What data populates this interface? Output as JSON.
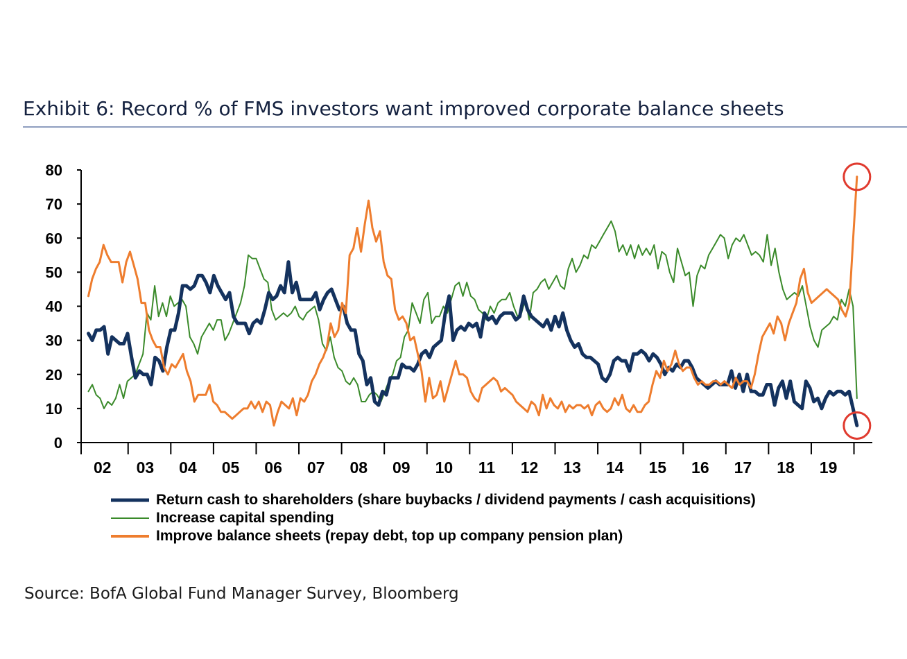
{
  "title": "Exhibit 6: Record % of FMS investors want improved corporate balance sheets",
  "source": "Source: BofA Global Fund Manager Survey, Bloomberg",
  "chart_data": {
    "type": "line",
    "x_start": 2002.17,
    "x_end": 2020.17,
    "step_years": 0.08333,
    "ylim": [
      0,
      80
    ],
    "yticks": [
      0,
      10,
      20,
      30,
      40,
      50,
      60,
      70,
      80
    ],
    "xtick_labels": [
      "02",
      "03",
      "04",
      "05",
      "06",
      "07",
      "08",
      "09",
      "10",
      "11",
      "12",
      "13",
      "14",
      "15",
      "16",
      "17",
      "18",
      "19"
    ],
    "xtick_positions": [
      2002.5,
      2003.5,
      2004.5,
      2005.5,
      2006.5,
      2007.5,
      2008.5,
      2009.5,
      2010.5,
      2011.5,
      2012.5,
      2013.5,
      2014.5,
      2015.5,
      2016.5,
      2017.5,
      2018.5,
      2019.5
    ],
    "xlabel": "",
    "ylabel": "",
    "series": [
      {
        "name": "Return cash to shareholders (share buybacks / dividend payments / cash acquisitions)",
        "color": "#14325e",
        "width": 5,
        "values": [
          32,
          30,
          33,
          33,
          34,
          26,
          31,
          30,
          29,
          29,
          32,
          25,
          19,
          21,
          20,
          20,
          17,
          25,
          24,
          21,
          28,
          33,
          33,
          38,
          46,
          46,
          45,
          46,
          49,
          49,
          47,
          44,
          49,
          46,
          44,
          42,
          44,
          37,
          35,
          35,
          35,
          32,
          35,
          36,
          35,
          39,
          44,
          42,
          43,
          46,
          44,
          53,
          44,
          47,
          42,
          42,
          42,
          42,
          44,
          39,
          42,
          44,
          45,
          42,
          39,
          40,
          35,
          33,
          33,
          26,
          24,
          17,
          19,
          12,
          11,
          15,
          14,
          19,
          19,
          19,
          23,
          22,
          22,
          21,
          23,
          26,
          27,
          25,
          28,
          29,
          30,
          38,
          43,
          30,
          33,
          34,
          33,
          35,
          34,
          35,
          31,
          38,
          36,
          37,
          35,
          37,
          38,
          38,
          38,
          36,
          37,
          43,
          39,
          37,
          36,
          35,
          34,
          36,
          33,
          37,
          34,
          38,
          33,
          30,
          28,
          29,
          26,
          25,
          25,
          24,
          23,
          19,
          18,
          20,
          24,
          25,
          24,
          24,
          21,
          26,
          26,
          27,
          26,
          24,
          26,
          25,
          23,
          20,
          22,
          21,
          23,
          22,
          24,
          24,
          22,
          19,
          18,
          17,
          16,
          17,
          18,
          17,
          17,
          17,
          21,
          16,
          20,
          15,
          20,
          15,
          15,
          14,
          14,
          17,
          17,
          11,
          16,
          18,
          13,
          18,
          12,
          11,
          10,
          18,
          16,
          12,
          13,
          10,
          13,
          15,
          14,
          15,
          15,
          14,
          15,
          10,
          5
        ]
      },
      {
        "name": "Increase capital spending",
        "color": "#3a8a2a",
        "width": 2,
        "values": [
          15,
          17,
          14,
          13,
          10,
          12,
          11,
          13,
          17,
          13,
          18,
          19,
          20,
          23,
          26,
          38,
          36,
          46,
          37,
          41,
          37,
          43,
          40,
          41,
          42,
          40,
          31,
          29,
          26,
          31,
          33,
          35,
          33,
          36,
          36,
          30,
          32,
          35,
          38,
          41,
          46,
          55,
          54,
          54,
          51,
          48,
          47,
          39,
          36,
          37,
          38,
          37,
          38,
          40,
          37,
          36,
          38,
          39,
          40,
          36,
          29,
          27,
          31,
          25,
          22,
          21,
          18,
          17,
          19,
          17,
          12,
          12,
          14,
          15,
          14,
          12,
          15,
          18,
          20,
          24,
          25,
          31,
          33,
          41,
          38,
          35,
          42,
          44,
          35,
          37,
          37,
          40,
          38,
          42,
          46,
          47,
          43,
          47,
          43,
          42,
          39,
          38,
          36,
          40,
          38,
          41,
          42,
          42,
          44,
          40,
          37,
          38,
          42,
          36,
          44,
          45,
          47,
          48,
          45,
          47,
          49,
          46,
          45,
          51,
          54,
          50,
          52,
          55,
          54,
          58,
          57,
          59,
          61,
          63,
          65,
          62,
          56,
          58,
          55,
          58,
          54,
          58,
          55,
          57,
          55,
          58,
          51,
          56,
          55,
          50,
          47,
          57,
          53,
          49,
          50,
          40,
          49,
          52,
          51,
          55,
          57,
          59,
          61,
          60,
          54,
          58,
          60,
          59,
          61,
          58,
          55,
          56,
          55,
          53,
          61,
          52,
          57,
          50,
          45,
          42,
          43,
          44,
          43,
          46,
          40,
          34,
          30,
          28,
          33,
          34,
          35,
          37,
          36,
          42,
          40,
          45,
          40,
          13
        ]
      },
      {
        "name": "Improve balance sheets (repay debt, top up company pension plan)",
        "color": "#ee7d2e",
        "width": 3,
        "values": [
          43,
          48,
          51,
          53,
          58,
          55,
          53,
          53,
          53,
          47,
          53,
          56,
          52,
          48,
          41,
          41,
          33,
          30,
          28,
          28,
          22,
          20,
          23,
          22,
          24,
          26,
          21,
          18,
          12,
          14,
          14,
          14,
          17,
          12,
          11,
          9,
          9,
          8,
          7,
          8,
          9,
          10,
          10,
          12,
          10,
          12,
          9,
          12,
          11,
          5,
          9,
          12,
          11,
          10,
          13,
          8,
          13,
          12,
          14,
          18,
          20,
          23,
          25,
          28,
          35,
          31,
          33,
          41,
          38,
          55,
          57,
          63,
          56,
          64,
          71,
          63,
          59,
          62,
          53,
          49,
          48,
          39,
          36,
          37,
          35,
          30,
          31,
          26,
          21,
          12,
          19,
          13,
          14,
          18,
          12,
          16,
          20,
          24,
          20,
          20,
          19,
          15,
          13,
          12,
          16,
          17,
          18,
          19,
          18,
          15,
          16,
          15,
          14,
          12,
          11,
          10,
          9,
          12,
          11,
          8,
          14,
          10,
          13,
          11,
          10,
          12,
          9,
          11,
          10,
          11,
          11,
          10,
          11,
          8,
          11,
          12,
          10,
          9,
          10,
          13,
          11,
          14,
          10,
          9,
          11,
          9,
          9,
          11,
          12,
          17,
          21,
          19,
          24,
          21,
          23,
          27,
          23,
          21,
          22,
          22,
          19,
          17,
          18,
          17,
          17,
          18,
          18,
          17,
          18,
          17,
          16,
          19,
          17,
          18,
          18,
          16,
          20,
          26,
          31,
          33,
          35,
          32,
          37,
          35,
          30,
          35,
          38,
          41,
          48,
          51,
          44,
          41,
          42,
          43,
          44,
          45,
          44,
          43,
          42,
          39,
          37,
          41,
          60,
          78
        ]
      }
    ],
    "annotations": [
      {
        "shape": "circle",
        "color": "#e03a2e",
        "x": 2020.17,
        "y": 78
      },
      {
        "shape": "circle",
        "color": "#e03a2e",
        "x": 2020.17,
        "y": 5
      }
    ]
  }
}
